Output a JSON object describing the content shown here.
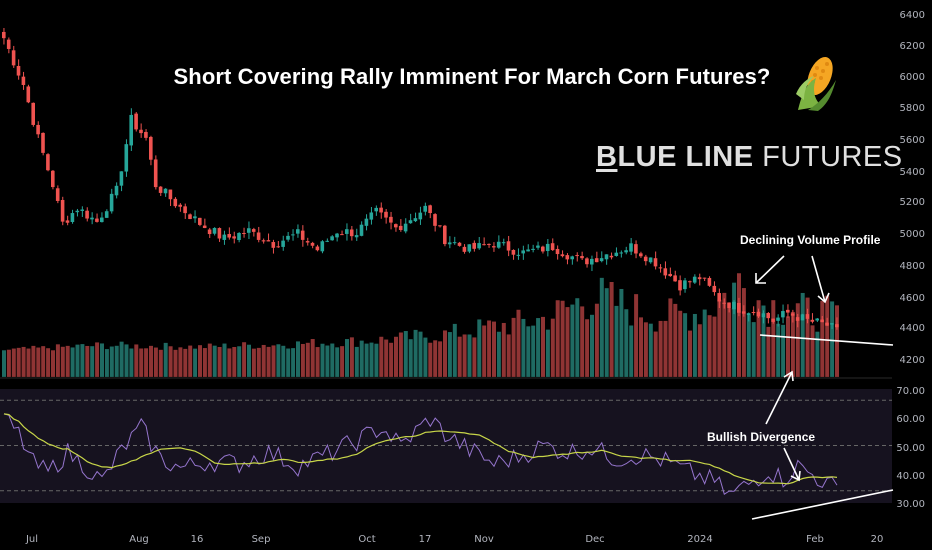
{
  "title": "Short Covering Rally Imminent For March Corn Futures?",
  "brand": {
    "b": "B",
    "lue": "LUE LINE",
    "futures": "FUTURES"
  },
  "annotations": {
    "volume": "Declining Volume Profile",
    "divergence": "Bullish Divergence"
  },
  "icons": {
    "corn": "corn-cob-icon"
  },
  "colors": {
    "background": "#000000",
    "up": "#26a69a",
    "down": "#ef5350",
    "volume_up": "#1f6b63",
    "volume_down": "#8f3434",
    "rsi": "#9575cd",
    "rsi_ma": "#c8d649",
    "rsi_band": "#16121f",
    "axis_text": "#b2b5be",
    "annotation": "#ffffff"
  },
  "chart_data": [
    {
      "type": "candlestick",
      "yaxis": {
        "ticks": [
          "6400",
          "6200",
          "6000",
          "5800",
          "5600",
          "5400",
          "5200",
          "5000",
          "4800",
          "4600",
          "4400",
          "4200"
        ],
        "range": [
          4100,
          6450
        ]
      },
      "xaxis": {
        "ticks": [
          "Jul",
          "Aug",
          "16",
          "Sep",
          "Oct",
          "17",
          "Nov",
          "Dec",
          "2024",
          "Feb",
          "20"
        ]
      },
      "close_path": [
        [
          0,
          6250
        ],
        [
          4,
          5950
        ],
        [
          7,
          5600
        ],
        [
          10,
          5300
        ],
        [
          12,
          5050
        ],
        [
          15,
          5150
        ],
        [
          19,
          5060
        ],
        [
          23,
          5260
        ],
        [
          26,
          5720
        ],
        [
          29,
          5600
        ],
        [
          31,
          5300
        ],
        [
          35,
          5180
        ],
        [
          40,
          5050
        ],
        [
          45,
          4950
        ],
        [
          50,
          5000
        ],
        [
          55,
          4920
        ],
        [
          60,
          4980
        ],
        [
          64,
          4880
        ],
        [
          68,
          5000
        ],
        [
          72,
          4990
        ],
        [
          76,
          5120
        ],
        [
          80,
          5020
        ],
        [
          83,
          5080
        ],
        [
          86,
          5150
        ],
        [
          90,
          4950
        ],
        [
          95,
          4880
        ],
        [
          100,
          4920
        ],
        [
          106,
          4860
        ],
        [
          112,
          4900
        ],
        [
          118,
          4800
        ],
        [
          123,
          4850
        ],
        [
          128,
          4900
        ],
        [
          133,
          4800
        ],
        [
          138,
          4650
        ],
        [
          142,
          4700
        ],
        [
          146,
          4560
        ],
        [
          150,
          4500
        ],
        [
          154,
          4480
        ],
        [
          157,
          4420
        ],
        [
          160,
          4470
        ],
        [
          164,
          4420
        ],
        [
          168,
          4390
        ],
        [
          170,
          4350
        ]
      ],
      "volume_path": [
        [
          0,
          4230
        ],
        [
          20,
          4260
        ],
        [
          40,
          4250
        ],
        [
          60,
          4270
        ],
        [
          75,
          4290
        ],
        [
          90,
          4330
        ],
        [
          100,
          4380
        ],
        [
          110,
          4430
        ],
        [
          115,
          4500
        ],
        [
          120,
          4580
        ],
        [
          125,
          4530
        ],
        [
          133,
          4450
        ],
        [
          140,
          4460
        ],
        [
          145,
          4520
        ],
        [
          150,
          4660
        ],
        [
          155,
          4530
        ],
        [
          160,
          4500
        ],
        [
          165,
          4470
        ],
        [
          170,
          4460
        ]
      ],
      "rsi_path": [
        [
          0,
          62
        ],
        [
          3,
          55
        ],
        [
          6,
          42
        ],
        [
          9,
          38
        ],
        [
          13,
          47
        ],
        [
          17,
          40
        ],
        [
          20,
          34
        ],
        [
          24,
          48
        ],
        [
          28,
          58
        ],
        [
          32,
          44
        ],
        [
          36,
          40
        ],
        [
          42,
          43
        ],
        [
          48,
          42
        ],
        [
          54,
          47
        ],
        [
          60,
          41
        ],
        [
          66,
          46
        ],
        [
          72,
          52
        ],
        [
          77,
          58
        ],
        [
          81,
          50
        ],
        [
          84,
          56
        ],
        [
          87,
          62
        ],
        [
          90,
          55
        ],
        [
          95,
          48
        ],
        [
          100,
          42
        ],
        [
          105,
          45
        ],
        [
          110,
          50
        ],
        [
          115,
          47
        ],
        [
          120,
          49
        ],
        [
          125,
          44
        ],
        [
          130,
          46
        ],
        [
          135,
          43
        ],
        [
          140,
          38
        ],
        [
          145,
          34
        ],
        [
          148,
          28
        ],
        [
          152,
          33
        ],
        [
          156,
          39
        ],
        [
          159,
          35
        ],
        [
          162,
          41
        ],
        [
          165,
          37
        ],
        [
          168,
          33
        ],
        [
          170,
          31
        ]
      ]
    },
    {
      "type": "line",
      "name": "RSI",
      "yaxis": {
        "ticks": [
          "70.00",
          "60.00",
          "50.00",
          "40.00",
          "30.00"
        ],
        "range": [
          25,
          75
        ],
        "guides": [
          70,
          50,
          30
        ]
      }
    }
  ]
}
